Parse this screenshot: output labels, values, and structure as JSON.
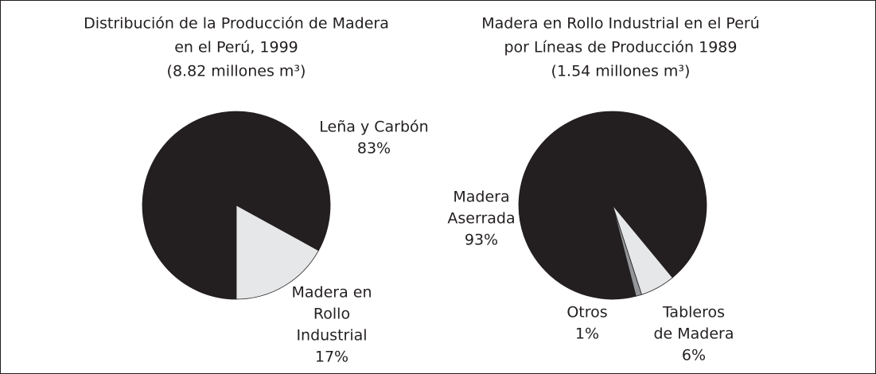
{
  "chart_data": [
    {
      "type": "pie",
      "title": [
        "Distribución de la Producción de Madera",
        "en el Perú, 1999"
      ],
      "subtitle": "(8.82 millones m³)",
      "categories": [
        [
          "Leña y Carbón"
        ],
        [
          "Madera en",
          "Rollo",
          "Industrial"
        ]
      ],
      "values": [
        83,
        17
      ],
      "value_labels": [
        "83%",
        "17%"
      ],
      "colors": [
        "#231f20",
        "#e6e7e8"
      ]
    },
    {
      "type": "pie",
      "title": [
        "Madera en Rollo Industrial en el Perú",
        "por Líneas de Producción 1989"
      ],
      "subtitle": "(1.54 millones m³)",
      "categories": [
        [
          "Madera",
          "Aserrada"
        ],
        [
          "Tableros",
          "de Madera"
        ],
        [
          "Otros"
        ]
      ],
      "values": [
        93,
        6,
        1
      ],
      "value_labels": [
        "93%",
        "6%",
        "1%"
      ],
      "colors": [
        "#231f20",
        "#e6e7e8",
        "#939598"
      ]
    }
  ]
}
